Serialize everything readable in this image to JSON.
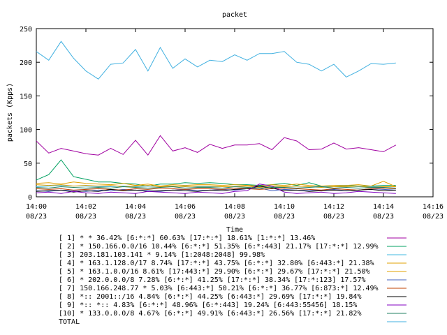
{
  "chart_data": {
    "type": "line",
    "title": "packet",
    "xlabel": "Time",
    "ylabel": "packets (Kpps)",
    "ylim": [
      0,
      250
    ],
    "y_ticks": [
      "0",
      "50",
      "100",
      "150",
      "200",
      "250"
    ],
    "x_ticks": [
      {
        "time": "14:00",
        "date": "08/23"
      },
      {
        "time": "14:02",
        "date": "08/23"
      },
      {
        "time": "14:04",
        "date": "08/23"
      },
      {
        "time": "14:06",
        "date": "08/23"
      },
      {
        "time": "14:08",
        "date": "08/23"
      },
      {
        "time": "14:10",
        "date": "08/23"
      },
      {
        "time": "14:12",
        "date": "08/23"
      },
      {
        "time": "14:14",
        "date": "08/23"
      },
      {
        "time": "14:16",
        "date": "08/23"
      }
    ],
    "x": [
      "14:00",
      "14:00:30",
      "14:01",
      "14:01:30",
      "14:02",
      "14:02:30",
      "14:03",
      "14:03:30",
      "14:04",
      "14:04:30",
      "14:05",
      "14:05:30",
      "14:06",
      "14:06:30",
      "14:07",
      "14:07:30",
      "14:08",
      "14:08:30",
      "14:09",
      "14:09:30",
      "14:10",
      "14:10:30",
      "14:11",
      "14:11:30",
      "14:12",
      "14:12:30",
      "14:13",
      "14:13:30",
      "14:14",
      "14:14:30"
    ],
    "grid": false,
    "legend_position": "bottom",
    "series": [
      {
        "name": "[ 1] * * 36.42%  [6:*:*] 60.63% [17:*:*] 18.61% [1:*:*] 13.46%",
        "color": "#a000a0",
        "values": [
          83,
          65,
          72,
          68,
          64,
          62,
          72,
          63,
          84,
          62,
          91,
          68,
          73,
          66,
          78,
          72,
          77,
          77,
          79,
          70,
          88,
          83,
          70,
          71,
          80,
          71,
          73,
          70,
          67,
          77
        ]
      },
      {
        "name": "[ 2] * 150.166.0.0/16 10.44%  [6:*:*] 51.35% [6:*:443] 21.17% [17:*:*] 12.99%",
        "color": "#00a060",
        "values": [
          25,
          33,
          55,
          30,
          26,
          22,
          22,
          20,
          19,
          16,
          19,
          19,
          21,
          20,
          21,
          20,
          18,
          18,
          17,
          18,
          20,
          17,
          21,
          16,
          15,
          17,
          16,
          16,
          17,
          17
        ]
      },
      {
        "name": "[ 3] 203.181.103.141 * 9.14%  [1:2048:2048] 99.98%",
        "color": "#40b8e0",
        "values": [
          15,
          16,
          17,
          16,
          16,
          15,
          15,
          16,
          15,
          16,
          15,
          15,
          16,
          15,
          15,
          15,
          15,
          16,
          15,
          15,
          15,
          16,
          15,
          15,
          15,
          16,
          15,
          15,
          15,
          15
        ]
      },
      {
        "name": "[ 4] * 163.1.128.0/17 8.74%  [17:*:*] 43.75% [6:*:*] 32.80% [6:443:*] 21.38%",
        "color": "#e0a000",
        "values": [
          20,
          21,
          19,
          22,
          20,
          19,
          18,
          20,
          17,
          19,
          16,
          18,
          17,
          18,
          18,
          17,
          18,
          17,
          16,
          18,
          17,
          19,
          17,
          16,
          17,
          17,
          18,
          16,
          23,
          15
        ]
      },
      {
        "name": "[ 5] * 163.1.0.0/16 8.61%  [17:443:*] 29.90% [6:*:*] 29.67% [17:*:*] 21.50%",
        "color": "#e0a000",
        "values": [
          18,
          17,
          18,
          16,
          17,
          16,
          17,
          15,
          16,
          17,
          15,
          16,
          15,
          16,
          16,
          15,
          15,
          16,
          14,
          16,
          15,
          16,
          15,
          14,
          15,
          15,
          16,
          14,
          15,
          15
        ]
      },
      {
        "name": "[ 6] * 202.0.0.0/8 7.28%  [6:*:*] 41.25% [17:*:*] 38.34% [17:*:123] 17.57%",
        "color": "#4060c0",
        "values": [
          9,
          8,
          10,
          9,
          8,
          10,
          9,
          11,
          10,
          9,
          8,
          10,
          11,
          9,
          10,
          11,
          10,
          12,
          13,
          9,
          11,
          10,
          9,
          10,
          11,
          9,
          10,
          12,
          11,
          10
        ]
      },
      {
        "name": "[ 7] 150.166.248.77 * 5.03%  [6:443:*] 50.21% [6:*:*] 36.77% [6:873:*] 12.49%",
        "color": "#c04000",
        "values": [
          12,
          11,
          12,
          10,
          11,
          12,
          11,
          10,
          12,
          11,
          13,
          12,
          11,
          12,
          12,
          11,
          13,
          12,
          11,
          12,
          13,
          12,
          11,
          10,
          12,
          11,
          10,
          12,
          13,
          12
        ]
      },
      {
        "name": "[ 8] *:: 2001::/16 4.84%  [6:*:*] 44.25% [6:443:*] 29.69% [17:*:*] 19.84%",
        "color": "#000000",
        "values": [
          8,
          9,
          10,
          7,
          9,
          8,
          11,
          9,
          10,
          8,
          9,
          10,
          9,
          8,
          10,
          9,
          11,
          12,
          16,
          13,
          9,
          10,
          8,
          9,
          10,
          9,
          10,
          11,
          9,
          10
        ]
      },
      {
        "name": "[ 9] *:: *:: 4.83%  [6:*:*] 48.96% [6:*:443] 19.24% [6:443:55456] 18.15%",
        "color": "#8000c0",
        "values": [
          6,
          7,
          5,
          8,
          6,
          5,
          7,
          6,
          5,
          8,
          7,
          6,
          5,
          7,
          6,
          5,
          8,
          9,
          19,
          16,
          7,
          5,
          6,
          7,
          5,
          6,
          8,
          7,
          6,
          5
        ]
      },
      {
        "name": "[10] * 133.0.0.0/8 4.67%  [6:*:*] 49.91% [6:443:*] 26.56% [17:*:*] 21.82%",
        "color": "#208060",
        "values": [
          14,
          13,
          15,
          14,
          13,
          14,
          13,
          15,
          14,
          13,
          14,
          15,
          13,
          14,
          14,
          13,
          15,
          14,
          13,
          14,
          14,
          13,
          14,
          15,
          13,
          14,
          13,
          14,
          14,
          13
        ]
      },
      {
        "name": "TOTAL",
        "color": "#40b0e0",
        "values": [
          216,
          203,
          231,
          206,
          187,
          175,
          197,
          199,
          219,
          187,
          222,
          191,
          205,
          193,
          203,
          201,
          211,
          203,
          213,
          213,
          216,
          200,
          197,
          187,
          197,
          178,
          187,
          198,
          197,
          199
        ]
      }
    ]
  }
}
